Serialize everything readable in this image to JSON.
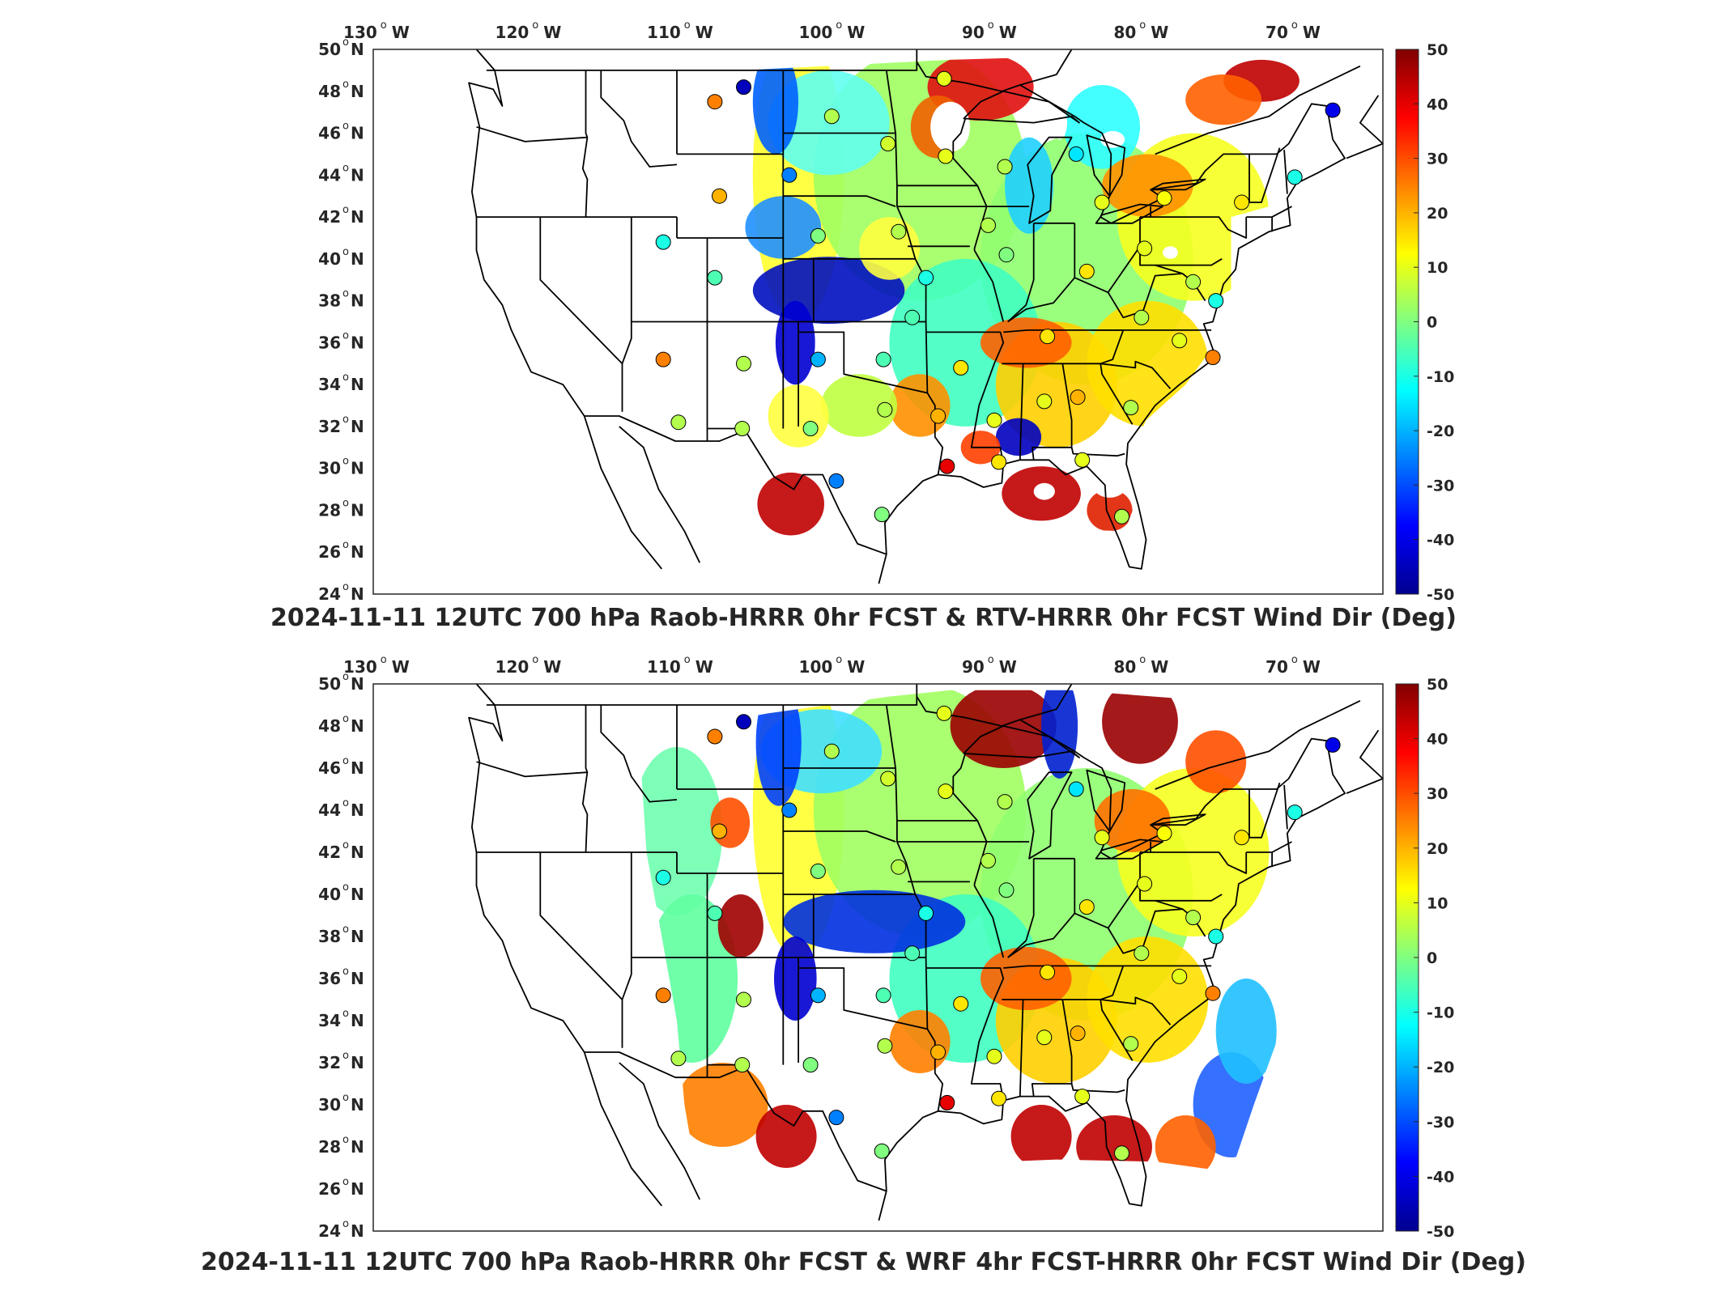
{
  "panels": [
    {
      "title": "2024-11-11 12UTC 700 hPa Raob-HRRR 0hr FCST & RTV-HRRR 0hr FCST Wind Dir (Deg)",
      "field": "rtv"
    },
    {
      "title": "2024-11-11 12UTC 700 hPa Raob-HRRR 0hr FCST & WRF 4hr FCST-HRRR 0hr FCST Wind Dir (Deg)",
      "field": "wrf"
    }
  ],
  "axes": {
    "lon_ticks": [
      "130",
      "120",
      "110",
      "100",
      "90",
      "80",
      "70"
    ],
    "lon_hemisphere": "W",
    "lat_ticks": [
      "50",
      "48",
      "46",
      "44",
      "42",
      "40",
      "38",
      "36",
      "34",
      "32",
      "30",
      "28",
      "26",
      "24"
    ],
    "lat_hemisphere": "N",
    "degree_symbol": "o"
  },
  "colorbar": {
    "ticks": [
      "50",
      "40",
      "30",
      "20",
      "10",
      "0",
      "-10",
      "-20",
      "-30",
      "-40",
      "-50"
    ],
    "min": -50,
    "max": 50,
    "colormap": "jet",
    "colors": [
      "#00008f",
      "#0000ff",
      "#0080ff",
      "#00ffff",
      "#80ff80",
      "#ffff00",
      "#ff8000",
      "#ff0000",
      "#800000"
    ]
  },
  "raob_stations": {
    "points": [
      {
        "lon": -108.5,
        "lat": 47.5,
        "value": 25
      },
      {
        "lon": -106.6,
        "lat": 48.2,
        "value": -45
      },
      {
        "lon": -100.8,
        "lat": 46.8,
        "value": 5
      },
      {
        "lon": -97.1,
        "lat": 45.5,
        "value": 8
      },
      {
        "lon": -93.3,
        "lat": 44.9,
        "value": 10
      },
      {
        "lon": -93.4,
        "lat": 48.6,
        "value": 10
      },
      {
        "lon": -89.4,
        "lat": 44.4,
        "value": 5
      },
      {
        "lon": -84.7,
        "lat": 45.0,
        "value": -15
      },
      {
        "lon": -83.0,
        "lat": 42.7,
        "value": 10
      },
      {
        "lon": -78.9,
        "lat": 42.9,
        "value": 12
      },
      {
        "lon": -73.8,
        "lat": 42.7,
        "value": 15
      },
      {
        "lon": -70.3,
        "lat": 43.9,
        "value": -10
      },
      {
        "lon": -67.8,
        "lat": 47.1,
        "value": -40
      },
      {
        "lon": -103.6,
        "lat": 44.0,
        "value": -25
      },
      {
        "lon": -108.2,
        "lat": 43.0,
        "value": 20
      },
      {
        "lon": -111.9,
        "lat": 40.8,
        "value": -10
      },
      {
        "lon": -108.5,
        "lat": 39.1,
        "value": -5
      },
      {
        "lon": -101.7,
        "lat": 41.1,
        "value": 0
      },
      {
        "lon": -96.4,
        "lat": 41.3,
        "value": 5
      },
      {
        "lon": -94.6,
        "lat": 39.1,
        "value": -10
      },
      {
        "lon": -89.3,
        "lat": 40.2,
        "value": 0
      },
      {
        "lon": -90.5,
        "lat": 41.6,
        "value": 5
      },
      {
        "lon": -86.6,
        "lat": 36.3,
        "value": 15
      },
      {
        "lon": -84.0,
        "lat": 39.4,
        "value": 15
      },
      {
        "lon": -80.2,
        "lat": 40.5,
        "value": 10
      },
      {
        "lon": -77.0,
        "lat": 38.9,
        "value": 5
      },
      {
        "lon": -75.5,
        "lat": 38.0,
        "value": -10
      },
      {
        "lon": -80.4,
        "lat": 37.2,
        "value": 5
      },
      {
        "lon": -77.9,
        "lat": 36.1,
        "value": 10
      },
      {
        "lon": -75.7,
        "lat": 35.3,
        "value": 25
      },
      {
        "lon": -81.1,
        "lat": 32.9,
        "value": 5
      },
      {
        "lon": -84.6,
        "lat": 33.4,
        "value": 20
      },
      {
        "lon": -86.8,
        "lat": 33.2,
        "value": 10
      },
      {
        "lon": -90.1,
        "lat": 32.3,
        "value": 10
      },
      {
        "lon": -92.3,
        "lat": 34.8,
        "value": 15
      },
      {
        "lon": -93.8,
        "lat": 32.5,
        "value": 20
      },
      {
        "lon": -95.5,
        "lat": 37.2,
        "value": -5
      },
      {
        "lon": -97.4,
        "lat": 35.2,
        "value": -5
      },
      {
        "lon": -101.7,
        "lat": 35.2,
        "value": -20
      },
      {
        "lon": -106.6,
        "lat": 35.0,
        "value": 5
      },
      {
        "lon": -111.9,
        "lat": 35.2,
        "value": 25
      },
      {
        "lon": -110.9,
        "lat": 32.2,
        "value": 5
      },
      {
        "lon": -106.7,
        "lat": 31.9,
        "value": 5
      },
      {
        "lon": -102.2,
        "lat": 31.9,
        "value": 0
      },
      {
        "lon": -97.3,
        "lat": 32.8,
        "value": 5
      },
      {
        "lon": -100.5,
        "lat": 29.4,
        "value": -25
      },
      {
        "lon": -97.5,
        "lat": 27.8,
        "value": 0
      },
      {
        "lon": -93.2,
        "lat": 30.1,
        "value": 40
      },
      {
        "lon": -89.8,
        "lat": 30.3,
        "value": 15
      },
      {
        "lon": -84.3,
        "lat": 30.4,
        "value": 10
      },
      {
        "lon": -81.7,
        "lat": 27.7,
        "value": 5
      }
    ]
  }
}
